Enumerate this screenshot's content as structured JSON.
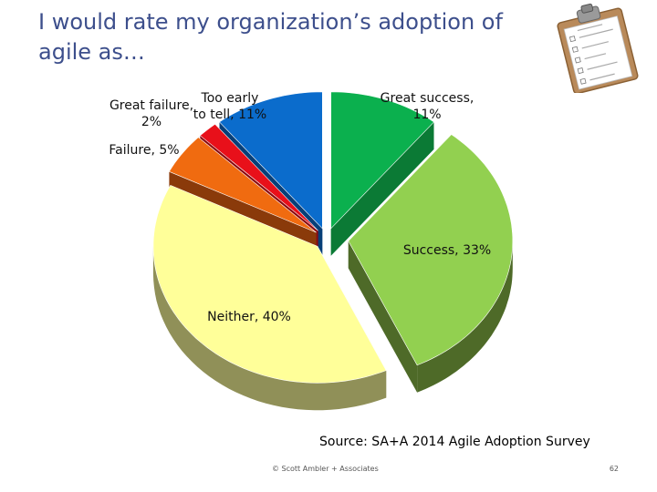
{
  "title": "I would rate my organization’s adoption of agile as…",
  "chart_data": {
    "type": "pie",
    "title": "",
    "slices": [
      {
        "label": "Great success",
        "value": 11,
        "display": "Great success, 11%",
        "color": "#0bb04e",
        "side": "#0b7a35"
      },
      {
        "label": "Success",
        "value": 33,
        "display": "Success, 33%",
        "color": "#92d050",
        "side": "#4e6a28"
      },
      {
        "label": "Neither",
        "value": 40,
        "display": "Neither, 40%",
        "color": "#ffff99",
        "side": "#909058"
      },
      {
        "label": "Failure",
        "value": 5,
        "display": "Failure, 5%",
        "color": "#f06b10",
        "side": "#8a3a0a"
      },
      {
        "label": "Great failure",
        "value": 2,
        "display": "Great failure, 2%",
        "color": "#e8101a",
        "side": "#8a0a10"
      },
      {
        "label": "Too early to tell",
        "value": 11,
        "display": "Too early to tell, 11%",
        "color": "#0b6ccc",
        "side": "#073f78"
      }
    ]
  },
  "source": "Source: SA+A 2014 Agile Adoption Survey",
  "footer": "© Scott Ambler + Associates",
  "page_number": "62",
  "icon": "clipboard-checklist-icon"
}
